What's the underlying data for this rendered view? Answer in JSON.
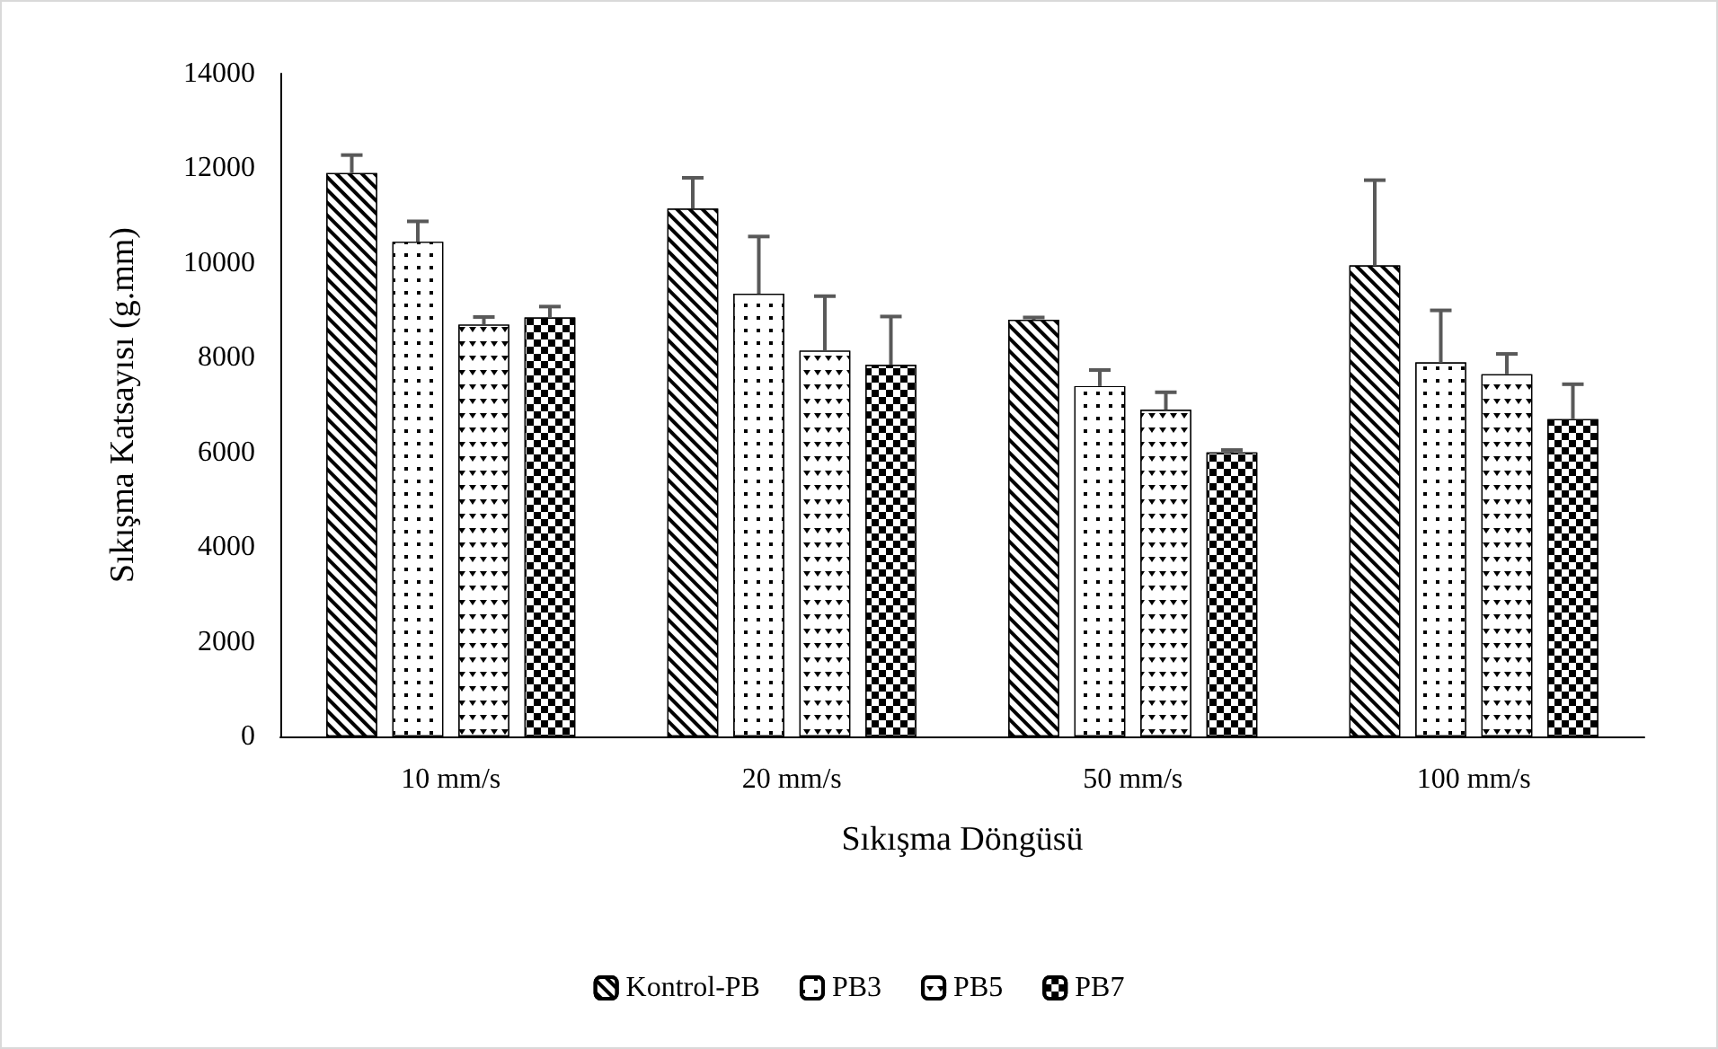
{
  "chart_data": {
    "type": "bar",
    "xlabel": "Sıkışma Döngüsü",
    "ylabel": "Sıkışma Katsayısı (g.mm)",
    "categories": [
      "10 mm/s",
      "20 mm/s",
      "50 mm/s",
      "100 mm/s"
    ],
    "series": [
      {
        "name": "Kontrol-PB",
        "color": "#000000",
        "values": [
          11900,
          11150,
          8800,
          9950
        ],
        "errors": [
          [
            11900,
            12280
          ],
          [
            11150,
            11800
          ],
          [
            8800,
            8850
          ],
          [
            9950,
            11750
          ]
        ]
      },
      {
        "name": "PB3",
        "color": "#000000",
        "values": [
          10450,
          9350,
          7400,
          7900
        ],
        "errors": [
          [
            10450,
            10880
          ],
          [
            9350,
            10560
          ],
          [
            7400,
            7740
          ],
          [
            7900,
            9000
          ]
        ]
      },
      {
        "name": "PB5",
        "color": "#000000",
        "values": [
          8700,
          8150,
          6900,
          7650
        ],
        "errors": [
          [
            8700,
            8860
          ],
          [
            8150,
            9300
          ],
          [
            6900,
            7270
          ],
          [
            7650,
            8080
          ]
        ]
      },
      {
        "name": "PB7",
        "color": "#000000",
        "values": [
          8850,
          7850,
          6000,
          6700
        ],
        "errors": [
          [
            8850,
            9080
          ],
          [
            7850,
            8870
          ],
          [
            6000,
            6050
          ],
          [
            6700,
            7440
          ]
        ]
      }
    ],
    "ylim": [
      0,
      14000
    ],
    "yticks": [
      0,
      2000,
      4000,
      6000,
      8000,
      10000,
      12000,
      14000
    ],
    "grid": false,
    "legend": "bottom"
  }
}
